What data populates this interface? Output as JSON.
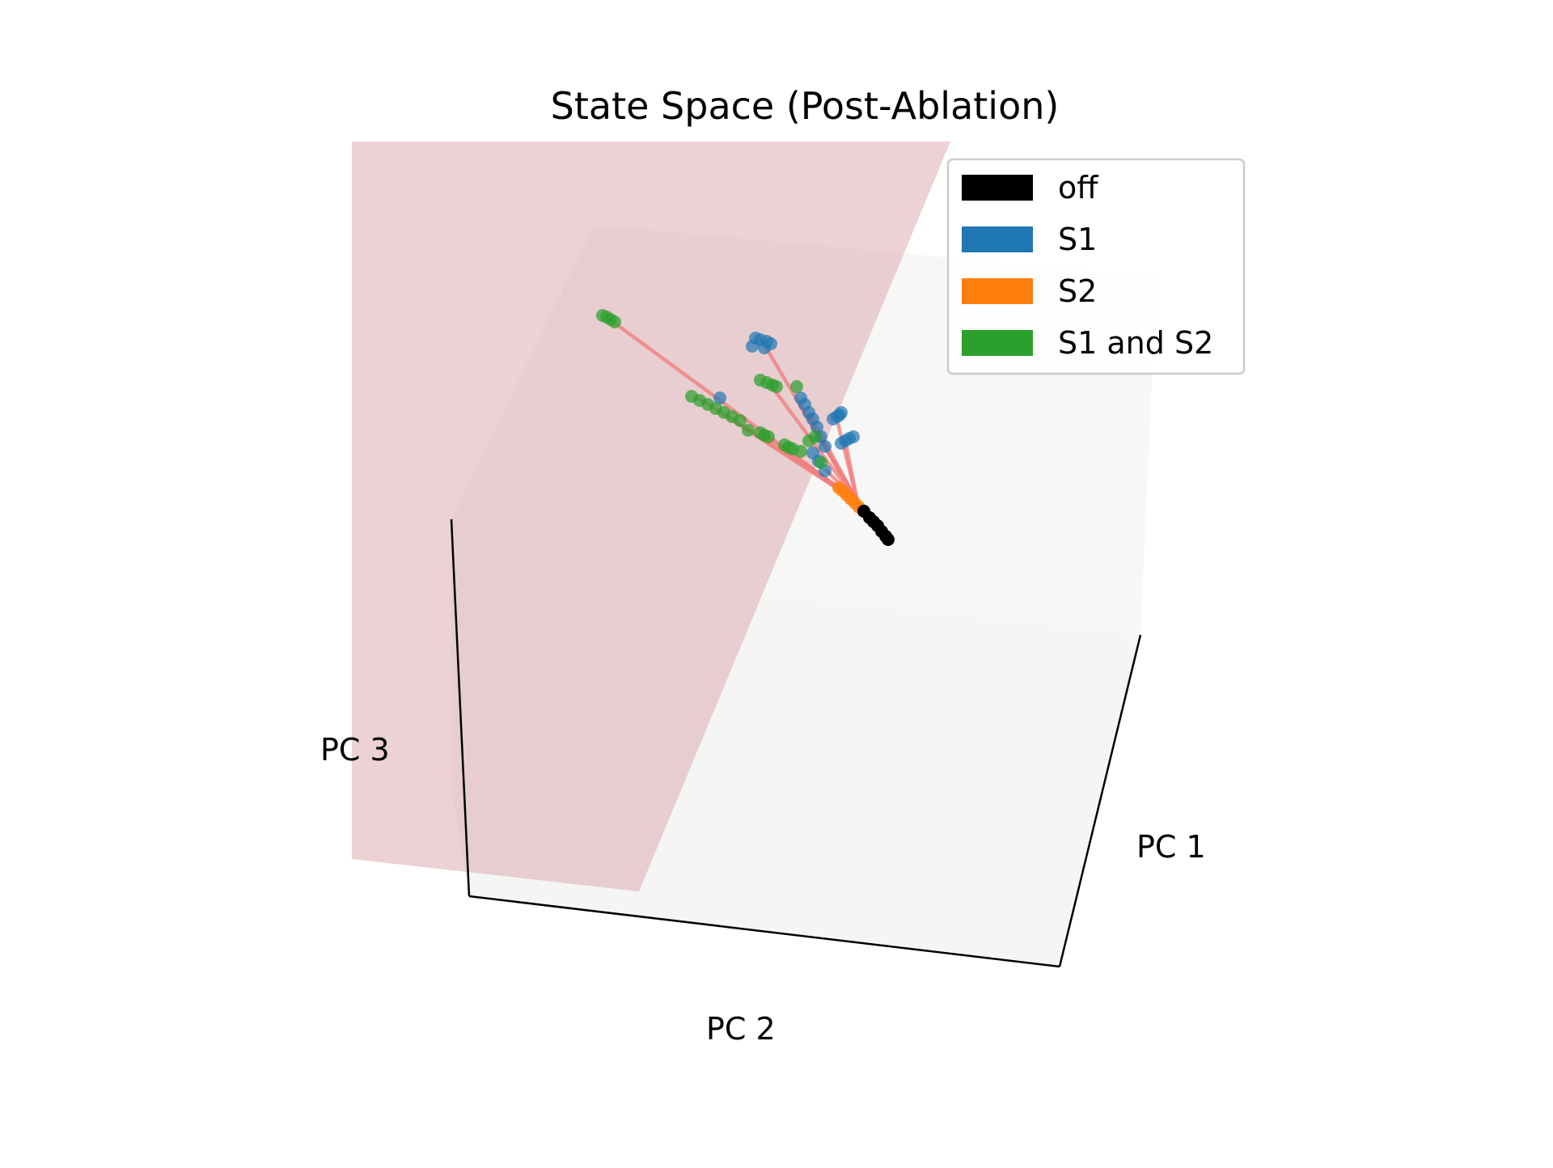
{
  "chart_data": {
    "type": "scatter",
    "projection": "3d",
    "title": "State Space (Post-Ablation)",
    "axes": {
      "x": {
        "label": "PC 1"
      },
      "y": {
        "label": "PC 2"
      },
      "z": {
        "label": "PC 3"
      }
    },
    "ticks": "none",
    "grid": false,
    "legend_position": "upper-right",
    "plane": {
      "color": "#d9a6a9",
      "description": "semi-transparent separating plane"
    },
    "trajectory_line_color": "#f08080",
    "series": [
      {
        "name": "off",
        "color": "#000000"
      },
      {
        "name": "S1",
        "color": "#1f77b4"
      },
      {
        "name": "S2",
        "color": "#ff7f0e"
      },
      {
        "name": "S1 and S2",
        "color": "#2ca02c"
      }
    ]
  }
}
